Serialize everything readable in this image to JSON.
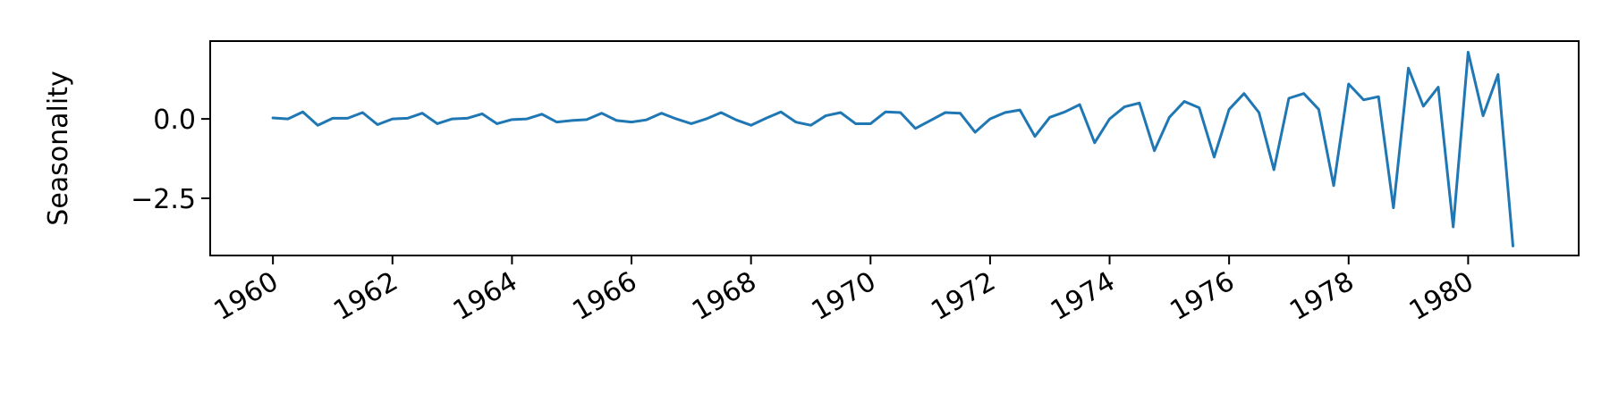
{
  "chart_data": {
    "type": "line",
    "title": "",
    "xlabel": "",
    "ylabel": "Seasonality",
    "xlim": [
      1958.95,
      1981.85
    ],
    "ylim": [
      -4.3,
      2.45
    ],
    "grid": false,
    "legend": "none",
    "x_ticks": [
      1960,
      1962,
      1964,
      1966,
      1968,
      1970,
      1972,
      1974,
      1976,
      1978,
      1980
    ],
    "x_tick_labels": [
      "1960",
      "1962",
      "1964",
      "1966",
      "1968",
      "1970",
      "1972",
      "1974",
      "1976",
      "1978",
      "1980"
    ],
    "y_ticks": [
      0.0,
      -2.5
    ],
    "y_tick_labels": [
      "0.0",
      "−2.5"
    ],
    "series": [
      {
        "color": "#1f77b4",
        "x": [
          1960.0,
          1960.25,
          1960.5,
          1960.75,
          1961.0,
          1961.25,
          1961.5,
          1961.75,
          1962.0,
          1962.25,
          1962.5,
          1962.75,
          1963.0,
          1963.25,
          1963.5,
          1963.75,
          1964.0,
          1964.25,
          1964.5,
          1964.75,
          1965.0,
          1965.25,
          1965.5,
          1965.75,
          1966.0,
          1966.25,
          1966.5,
          1966.75,
          1967.0,
          1967.25,
          1967.5,
          1967.75,
          1968.0,
          1968.25,
          1968.5,
          1968.75,
          1969.0,
          1969.25,
          1969.5,
          1969.75,
          1970.0,
          1970.25,
          1970.5,
          1970.75,
          1971.0,
          1971.25,
          1971.5,
          1971.75,
          1972.0,
          1972.25,
          1972.5,
          1972.75,
          1973.0,
          1973.25,
          1973.5,
          1973.75,
          1974.0,
          1974.25,
          1974.5,
          1974.75,
          1975.0,
          1975.25,
          1975.5,
          1975.75,
          1976.0,
          1976.25,
          1976.5,
          1976.75,
          1977.0,
          1977.25,
          1977.5,
          1977.75,
          1978.0,
          1978.25,
          1978.5,
          1978.75,
          1979.0,
          1979.25,
          1979.5,
          1979.75,
          1980.0,
          1980.25,
          1980.5,
          1980.75
        ],
        "values": [
          0.03,
          0.0,
          0.22,
          -0.2,
          0.02,
          0.02,
          0.2,
          -0.18,
          0.0,
          0.02,
          0.18,
          -0.15,
          0.0,
          0.02,
          0.16,
          -0.15,
          -0.02,
          0.0,
          0.15,
          -0.1,
          -0.05,
          -0.02,
          0.18,
          -0.05,
          -0.1,
          -0.03,
          0.18,
          0.0,
          -0.15,
          0.0,
          0.2,
          -0.03,
          -0.2,
          0.02,
          0.22,
          -0.1,
          -0.2,
          0.1,
          0.2,
          -0.15,
          -0.15,
          0.22,
          0.2,
          -0.3,
          -0.05,
          0.2,
          0.18,
          -0.42,
          0.0,
          0.2,
          0.28,
          -0.55,
          0.05,
          0.22,
          0.45,
          -0.75,
          0.0,
          0.38,
          0.5,
          -1.0,
          0.05,
          0.55,
          0.35,
          -1.2,
          0.3,
          0.8,
          0.2,
          -1.6,
          0.65,
          0.8,
          0.3,
          -2.1,
          1.1,
          0.6,
          0.7,
          -2.8,
          1.6,
          0.4,
          1.0,
          -3.4,
          2.1,
          0.1,
          1.4,
          -4.0
        ]
      }
    ]
  }
}
